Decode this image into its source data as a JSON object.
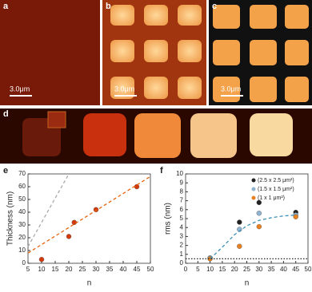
{
  "panels": [
    {
      "label": "a",
      "scale": "3.0μm"
    },
    {
      "label": "b",
      "scale": "3.0μm"
    },
    {
      "label": "c",
      "scale": "3.0μm"
    },
    {
      "label": "d"
    }
  ],
  "chart_data": [
    {
      "type": "scatter",
      "panel_label": "e",
      "y_label": "Thickness (nm)",
      "x_label": "n",
      "xlim": [
        5,
        50
      ],
      "xticks": [
        5,
        10,
        15,
        20,
        25,
        30,
        35,
        40,
        45,
        50
      ],
      "ylim": [
        0,
        70
      ],
      "yticks": [
        0,
        10,
        20,
        30,
        40,
        50,
        60,
        70
      ],
      "series": [
        {
          "color": "#d23a0a",
          "x": [
            10,
            20,
            22,
            30,
            45
          ],
          "values": [
            3,
            21,
            32,
            42,
            60
          ]
        },
        {
          "color": "#e8640f",
          "style": "dashed",
          "x": [
            5,
            50
          ],
          "values": [
            8,
            68
          ]
        },
        {
          "color": "#aaaaaa",
          "style": "dashed",
          "x": [
            5,
            20
          ],
          "values": [
            13,
            70
          ]
        }
      ]
    },
    {
      "type": "scatter",
      "panel_label": "f",
      "y_label": "rms (nm)",
      "x_label": "n",
      "legend": "upper right",
      "xlim": [
        0,
        50
      ],
      "xticks": [
        0,
        5,
        10,
        15,
        20,
        25,
        30,
        35,
        40,
        45,
        50
      ],
      "ylim": [
        0,
        10
      ],
      "yticks": [
        0,
        1,
        2,
        3,
        4,
        5,
        6,
        7,
        8,
        9,
        10
      ],
      "series": [
        {
          "name": "(2.5 x 2.5 μm²)",
          "color": "#222222",
          "x": [
            10,
            22,
            30,
            45
          ],
          "values": [
            0.6,
            4.6,
            6.8,
            5.7
          ]
        },
        {
          "name": "(1.5 x 1.5 μm²)",
          "color": "#8fb3d0",
          "x": [
            10,
            22,
            30,
            45
          ],
          "values": [
            0.6,
            3.8,
            5.6,
            5.4
          ]
        },
        {
          "name": "(1 x 1 μm²)",
          "color": "#e8801f",
          "x": [
            10,
            22,
            30,
            45
          ],
          "values": [
            0.5,
            1.9,
            4.1,
            5.2
          ]
        },
        {
          "color": "#3a8fb5",
          "style": "dashed",
          "x": [
            10,
            15,
            20,
            25,
            30,
            35,
            40,
            45
          ],
          "values": [
            0.5,
            1.8,
            3.2,
            4.2,
            4.8,
            5.1,
            5.3,
            5.4
          ]
        },
        {
          "color": "#222222",
          "style": "dotted",
          "x": [
            0,
            50
          ],
          "values": [
            0.5,
            0.5
          ]
        }
      ]
    }
  ]
}
